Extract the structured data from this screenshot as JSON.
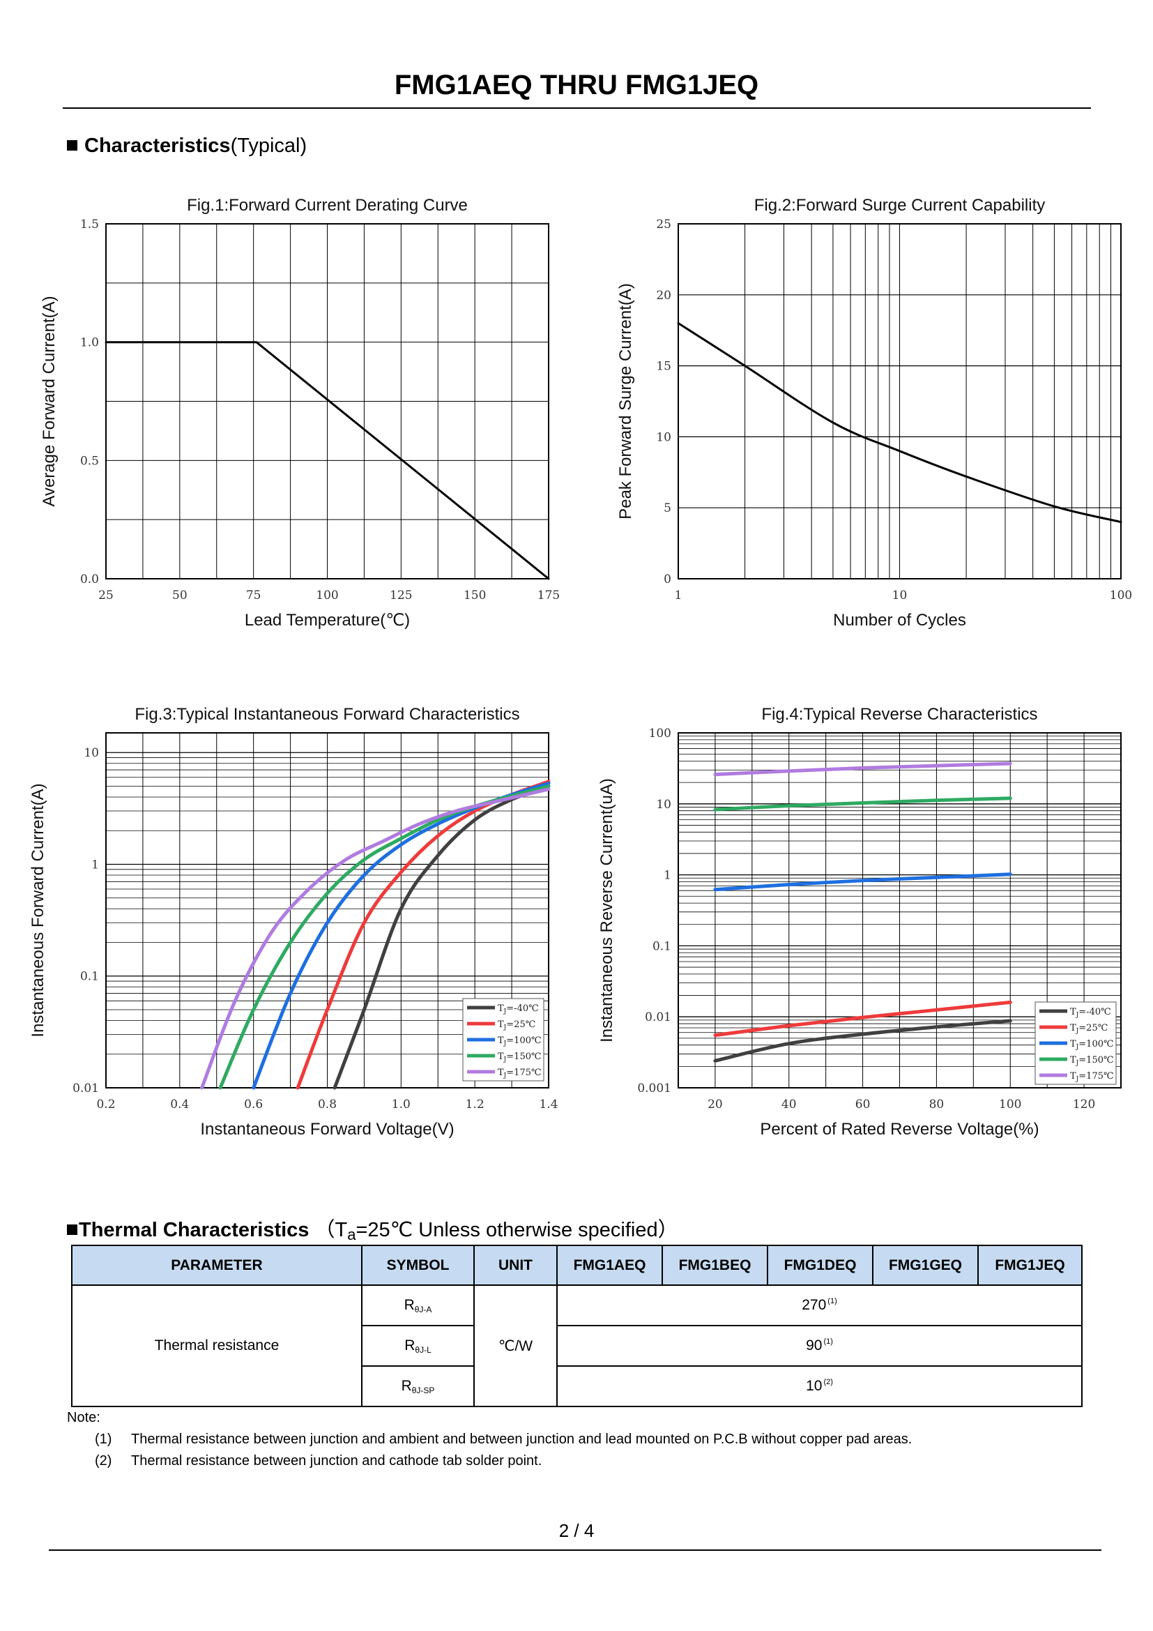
{
  "document": {
    "title": "FMG1AEQ THRU FMG1JEQ",
    "section_characteristics": {
      "bold": "Characteristics",
      "normal": "(Typical)"
    },
    "page_number": "2 / 4"
  },
  "fig1": {
    "title": "Fig.1:Forward Current Derating Curve",
    "ylabel": "Average Forward Current(A)",
    "xlabel": "Lead Temperature(℃)",
    "xticks": [
      "25",
      "50",
      "75",
      "100",
      "125",
      "150",
      "175"
    ],
    "yticks": [
      "0.0",
      "0.5",
      "1.0",
      "1.5"
    ]
  },
  "fig2": {
    "title": "Fig.2:Forward Surge Current Capability",
    "ylabel": "Peak Forward Surge Current(A)",
    "xlabel": "Number of Cycles",
    "xticks": [
      "1",
      "10",
      "100"
    ],
    "yticks": [
      "0",
      "5",
      "10",
      "15",
      "20",
      "25"
    ]
  },
  "fig3": {
    "title": "Fig.3:Typical Instantaneous Forward Characteristics",
    "ylabel": "Instantaneous Forward Current(A)",
    "xlabel": "Instantaneous Forward Voltage(V)",
    "xticks": [
      "0.2",
      "0.4",
      "0.6",
      "0.8",
      "1.0",
      "1.2",
      "1.4"
    ],
    "yticks": [
      "0.01",
      "0.1",
      "1",
      "10"
    ]
  },
  "fig4": {
    "title": "Fig.4:Typical Reverse Characteristics",
    "ylabel": "Instantaneous Reverse Current(uA)",
    "xlabel": "Percent of Rated Reverse Voltage(%)",
    "xticks": [
      "20",
      "40",
      "60",
      "80",
      "100",
      "120"
    ],
    "yticks": [
      "0.001",
      "0.01",
      "0.1",
      "1",
      "10",
      "100"
    ]
  },
  "legend": {
    "prefix": "T",
    "subscript": "J",
    "items": [
      {
        "label": "=-40℃",
        "color": "#404040"
      },
      {
        "label": "=25℃",
        "color": "#ee3b3b"
      },
      {
        "label": "=100℃",
        "color": "#1e6fe0"
      },
      {
        "label": "=150℃",
        "color": "#2eaa62"
      },
      {
        "label": "=175℃",
        "color": "#b07be0"
      }
    ]
  },
  "chart_data": [
    {
      "type": "line",
      "title": "Fig.1:Forward Current Derating Curve",
      "xlabel": "Lead Temperature(℃)",
      "ylabel": "Average Forward Current(A)",
      "xlim": [
        25,
        175
      ],
      "ylim": [
        0,
        1.5
      ],
      "series": [
        {
          "name": "derating",
          "x": [
            25,
            76,
            175
          ],
          "y": [
            1.0,
            1.0,
            0.0
          ]
        }
      ]
    },
    {
      "type": "line",
      "title": "Fig.2:Forward Surge Current Capability",
      "xlabel": "Number of Cycles",
      "ylabel": "Peak Forward Surge Current(A)",
      "xscale": "log",
      "xlim": [
        1,
        100
      ],
      "ylim": [
        0,
        25
      ],
      "series": [
        {
          "name": "surge",
          "x": [
            1,
            2,
            5,
            10,
            20,
            50,
            100
          ],
          "y": [
            18,
            15,
            11,
            9,
            7.2,
            5.1,
            4.0
          ]
        }
      ]
    },
    {
      "type": "line",
      "title": "Fig.3:Typical Instantaneous Forward Characteristics",
      "xlabel": "Instantaneous Forward Voltage(V)",
      "ylabel": "Instantaneous Forward Current(A)",
      "yscale": "log",
      "xlim": [
        0.2,
        1.4
      ],
      "ylim": [
        0.01,
        15
      ],
      "series": [
        {
          "name": "TJ=-40℃",
          "x": [
            0.82,
            0.9,
            1.0,
            1.1,
            1.2,
            1.3,
            1.4
          ],
          "y": [
            0.01,
            0.05,
            0.4,
            1.2,
            2.5,
            3.8,
            5.0
          ]
        },
        {
          "name": "TJ=25℃",
          "x": [
            0.72,
            0.8,
            0.9,
            1.0,
            1.1,
            1.2,
            1.3,
            1.4
          ],
          "y": [
            0.01,
            0.05,
            0.3,
            0.85,
            1.8,
            3.0,
            4.2,
            5.5
          ]
        },
        {
          "name": "TJ=100℃",
          "x": [
            0.6,
            0.7,
            0.8,
            0.9,
            1.0,
            1.1,
            1.2,
            1.3,
            1.4
          ],
          "y": [
            0.01,
            0.07,
            0.3,
            0.8,
            1.5,
            2.3,
            3.2,
            4.2,
            5.3
          ]
        },
        {
          "name": "TJ=150℃",
          "x": [
            0.51,
            0.6,
            0.7,
            0.8,
            0.9,
            1.0,
            1.1,
            1.2,
            1.3,
            1.4
          ],
          "y": [
            0.01,
            0.05,
            0.2,
            0.55,
            1.1,
            1.7,
            2.5,
            3.3,
            4.1,
            5.0
          ]
        },
        {
          "name": "TJ=175℃",
          "x": [
            0.46,
            0.55,
            0.65,
            0.75,
            0.85,
            0.95,
            1.05,
            1.15,
            1.25,
            1.4
          ],
          "y": [
            0.01,
            0.06,
            0.25,
            0.6,
            1.1,
            1.6,
            2.3,
            3.0,
            3.6,
            4.7
          ]
        }
      ]
    },
    {
      "type": "line",
      "title": "Fig.4:Typical Reverse Characteristics",
      "xlabel": "Percent of Rated Reverse Voltage(%)",
      "ylabel": "Instantaneous Reverse Current(uA)",
      "yscale": "log",
      "xlim": [
        10,
        130
      ],
      "ylim": [
        0.001,
        100
      ],
      "series": [
        {
          "name": "TJ=-40℃",
          "x": [
            20,
            40,
            60,
            80,
            100
          ],
          "y": [
            0.0024,
            0.0042,
            0.0057,
            0.0072,
            0.0088
          ]
        },
        {
          "name": "TJ=25℃",
          "x": [
            20,
            40,
            60,
            80,
            100
          ],
          "y": [
            0.0055,
            0.0075,
            0.0098,
            0.0125,
            0.016
          ]
        },
        {
          "name": "TJ=100℃",
          "x": [
            20,
            40,
            60,
            80,
            100
          ],
          "y": [
            0.62,
            0.73,
            0.83,
            0.92,
            1.02
          ]
        },
        {
          "name": "TJ=150℃",
          "x": [
            20,
            40,
            60,
            80,
            100
          ],
          "y": [
            8.3,
            9.4,
            10.3,
            11.2,
            12.0
          ]
        },
        {
          "name": "TJ=175℃",
          "x": [
            20,
            40,
            60,
            80,
            100
          ],
          "y": [
            26,
            29,
            32,
            34.5,
            37
          ]
        }
      ]
    }
  ],
  "thermal": {
    "section_bold": "Thermal Characteristics",
    "section_condition_prefix": "（T",
    "section_condition_sub": "a",
    "section_condition_rest": "=25℃ Unless otherwise specified）",
    "headers": {
      "parameter": "PARAMETER",
      "symbol": "SYMBOL",
      "unit": "UNIT",
      "p1": "FMG1AEQ",
      "p2": "FMG1BEQ",
      "p3": "FMG1DEQ",
      "p4": "FMG1GEQ",
      "p5": "FMG1JEQ"
    },
    "parameter": "Thermal resistance",
    "unit": "℃/W",
    "rows": [
      {
        "sym": "R",
        "sub": "θJ-A",
        "value": "270",
        "ref": "(1)"
      },
      {
        "sym": "R",
        "sub": "θJ-L",
        "value": "90",
        "ref": "(1)"
      },
      {
        "sym": "R",
        "sub": "θJ-SP",
        "value": "10",
        "ref": "(2)"
      }
    ]
  },
  "notes": {
    "label": "Note:",
    "items": [
      {
        "num": "(1)",
        "text": "Thermal resistance between junction and ambient and between junction and lead mounted on P.C.B without copper pad areas."
      },
      {
        "num": "(2)",
        "text": "Thermal resistance between junction and cathode tab solder point."
      }
    ]
  }
}
